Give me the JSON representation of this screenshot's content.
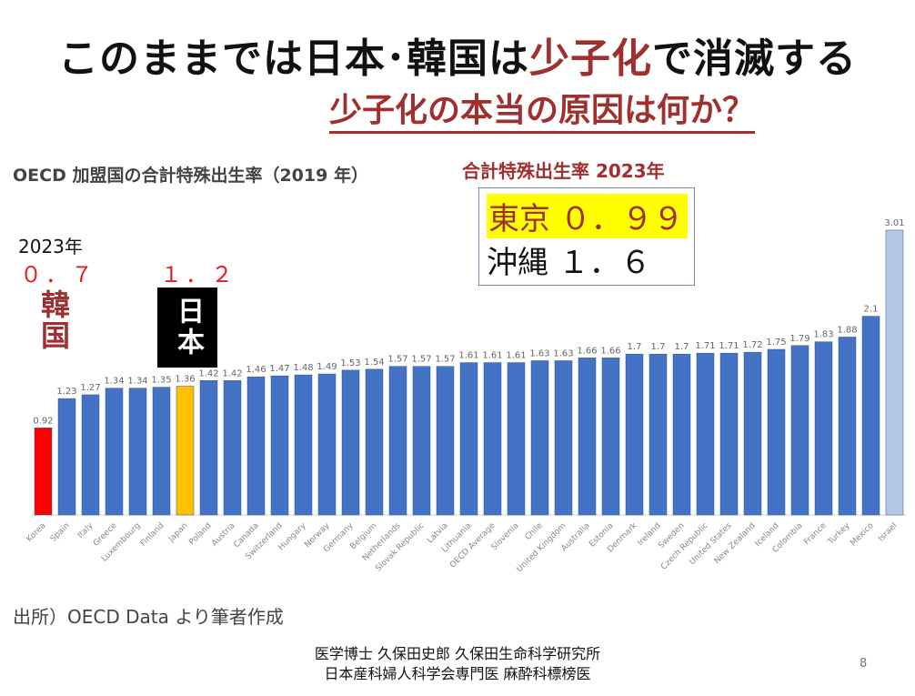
{
  "slide": {
    "title_part1": "このままでは日本･韓国は",
    "title_accent": "少子化",
    "title_part2": "で消滅する",
    "subtitle": "少子化の本当の原因は何か？",
    "stat_label": "合計特殊出生率  2023年",
    "tokyo": "東京  ０．９９",
    "okinawa": "沖縄  １．６",
    "year_label": "2023年",
    "korea_value": "０．７",
    "japan_value": "１．２",
    "korea_name": "韓国",
    "japan_name": "日本",
    "source": "出所）OECD   Data より筆者作成",
    "footer_line1": "医学博士 久保田史郎  久保田生命科学研究所",
    "footer_line2": "日本産科婦人科学会専門医  麻酔科標榜医",
    "page_number": "8"
  },
  "colors": {
    "default_bar": "#4472c4",
    "korea_bar": "#ff0000",
    "japan_bar": "#ffc000",
    "israel_bar": "#b4c7e7",
    "accent": "#a03030"
  },
  "chart_data": {
    "type": "bar",
    "title": "OECD 加盟国の合計特殊出生率（2019 年）",
    "categories": [
      "Korea",
      "Spain",
      "Italy",
      "Greece",
      "Luxembourg",
      "Finland",
      "Japan",
      "Poland",
      "Austria",
      "Canada",
      "Switzerland",
      "Hungary",
      "Norway",
      "Germany",
      "Belgium",
      "Netherlands",
      "Slovak Republic",
      "Latvia",
      "Lithuania",
      "OECD Average",
      "Slovenia",
      "Chile",
      "United Kingdom",
      "Australia",
      "Estonia",
      "Denmark",
      "Ireland",
      "Sweden",
      "Czech Republic",
      "United States",
      "New Zealand",
      "Iceland",
      "Colombia",
      "France",
      "Turkey",
      "Mexico",
      "Israel"
    ],
    "values": [
      0.92,
      1.23,
      1.27,
      1.34,
      1.34,
      1.35,
      1.36,
      1.42,
      1.42,
      1.46,
      1.47,
      1.48,
      1.49,
      1.53,
      1.54,
      1.57,
      1.57,
      1.57,
      1.61,
      1.61,
      1.61,
      1.63,
      1.63,
      1.66,
      1.66,
      1.7,
      1.7,
      1.7,
      1.71,
      1.71,
      1.72,
      1.75,
      1.79,
      1.83,
      1.88,
      2.1,
      3.01
    ],
    "value_labels": [
      "0.92",
      "1.23",
      "1.27",
      "1.34",
      "1.34",
      "1.35",
      "1.36",
      "1.42",
      "1.42",
      "1.46",
      "1.47",
      "1.48",
      "1.49",
      "1.53",
      "1.54",
      "1.57",
      "1.57",
      "1.57",
      "1.61",
      "1.61",
      "1.61",
      "1.63",
      "1.63",
      "1.66",
      "1.66",
      "1.7",
      "1.7",
      "1.7",
      "1.71",
      "1.71",
      "1.72",
      "1.75",
      "1.79",
      "1.83",
      "1.88",
      "2.1",
      "3.01"
    ],
    "highlights": {
      "Korea": "korea_bar",
      "Japan": "japan_bar",
      "Israel": "israel_bar"
    },
    "ylim": [
      0,
      3.1
    ],
    "grid": false,
    "legend": "none"
  }
}
